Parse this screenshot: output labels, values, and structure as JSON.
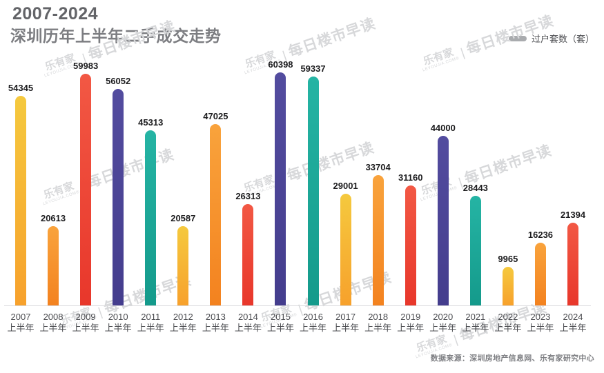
{
  "title": {
    "line1": "2007-2024",
    "line2": "深圳历年上半年二手成交走势"
  },
  "legend": {
    "label": "过户套数（套）",
    "swatch_color": "#a9abae"
  },
  "chart_data": {
    "type": "bar",
    "title": "2007-2024 深圳历年上半年二手成交走势",
    "ylabel": "过户套数（套）",
    "ylim": [
      0,
      60398
    ],
    "grid": false,
    "legend_position": "top-right",
    "categories": [
      {
        "year": "2007",
        "half": "上半年"
      },
      {
        "year": "2008",
        "half": "上半年"
      },
      {
        "year": "2009",
        "half": "上半年"
      },
      {
        "year": "2010",
        "half": "上半年"
      },
      {
        "year": "2011",
        "half": "上半年"
      },
      {
        "year": "2012",
        "half": "上半年"
      },
      {
        "year": "2013",
        "half": "上半年"
      },
      {
        "year": "2014",
        "half": "上半年"
      },
      {
        "year": "2015",
        "half": "上半年"
      },
      {
        "year": "2016",
        "half": "上半年"
      },
      {
        "year": "2017",
        "half": "上半年"
      },
      {
        "year": "2018",
        "half": "上半年"
      },
      {
        "year": "2019",
        "half": "上半年"
      },
      {
        "year": "2020",
        "half": "上半年"
      },
      {
        "year": "2021",
        "half": "上半年"
      },
      {
        "year": "2022",
        "half": "上半年"
      },
      {
        "year": "2023",
        "half": "上半年"
      },
      {
        "year": "2024",
        "half": "上半年"
      }
    ],
    "values": [
      54345,
      20613,
      59983,
      56052,
      45313,
      20587,
      47025,
      26313,
      60398,
      59337,
      29001,
      33704,
      31160,
      44000,
      28443,
      9965,
      16236,
      21394
    ],
    "colors_cycle": [
      "yellow",
      "orange",
      "red",
      "indigo",
      "teal"
    ],
    "palette": {
      "yellow": {
        "top": "#f5c93e",
        "bottom": "#f7a12c"
      },
      "orange": {
        "top": "#f9a33c",
        "bottom": "#f3821f"
      },
      "red": {
        "top": "#f25844",
        "bottom": "#e8372b"
      },
      "indigo": {
        "top": "#534c9f",
        "bottom": "#443d8d"
      },
      "teal": {
        "top": "#25b4a4",
        "bottom": "#149a8b"
      }
    }
  },
  "watermark": {
    "brand": "乐有家",
    "brand_sub": "LEYOUJIA.COM®",
    "separator": "|",
    "text": "每日楼市早读"
  },
  "source": "数据来源：深圳房地产信息网、乐有家研究中心"
}
